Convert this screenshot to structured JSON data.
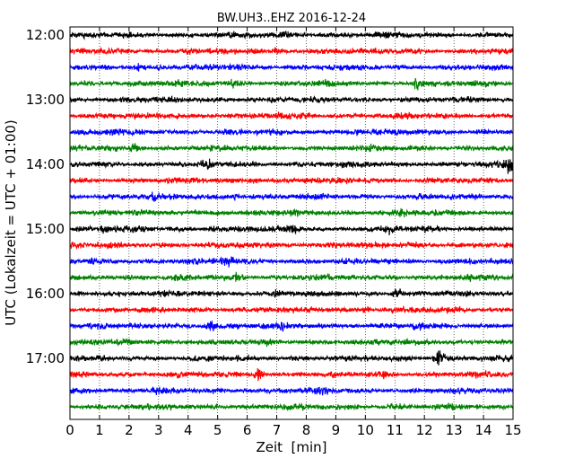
{
  "chart_data": {
    "type": "line",
    "title": "BW.UH3..EHZ 2016-12-24",
    "xlabel": "Zeit  [min]",
    "ylabel": "UTC (Lokalzeit = UTC + 01:00)",
    "xlim": [
      0,
      15
    ],
    "x_ticks": [
      "0",
      "1",
      "2",
      "3",
      "4",
      "5",
      "6",
      "7",
      "8",
      "9",
      "10",
      "11",
      "12",
      "13",
      "14",
      "15"
    ],
    "y_tick_labels": [
      "12:00",
      "13:00",
      "14:00",
      "15:00",
      "16:00",
      "17:00"
    ],
    "row_interval_minutes": 15,
    "grid": "dotted vertical lines at each minute",
    "colors": [
      "#000000",
      "#ff0000",
      "#0000ff",
      "#008000"
    ],
    "series": [
      {
        "start": "12:00",
        "events": [
          {
            "t": 7.3,
            "amp": 1.2
          }
        ]
      },
      {
        "start": "12:15",
        "events": [
          {
            "t": 4.0,
            "amp": 1.1
          },
          {
            "t": 7.0,
            "amp": 1.1
          }
        ]
      },
      {
        "start": "12:30",
        "events": [
          {
            "t": 2.3,
            "amp": 1.1
          },
          {
            "t": 5.7,
            "amp": 1.0
          }
        ]
      },
      {
        "start": "12:45",
        "events": [
          {
            "t": 5.5,
            "amp": 1.2
          },
          {
            "t": 8.6,
            "amp": 1.2
          },
          {
            "t": 11.8,
            "amp": 2.2
          }
        ]
      },
      {
        "start": "13:00",
        "events": []
      },
      {
        "start": "13:15",
        "events": [
          {
            "t": 3.7,
            "amp": 1.2
          },
          {
            "t": 7.2,
            "amp": 1.0
          },
          {
            "t": 11.5,
            "amp": 1.2
          }
        ]
      },
      {
        "start": "13:30",
        "events": [
          {
            "t": 1.5,
            "amp": 1.0
          },
          {
            "t": 9.7,
            "amp": 1.1
          }
        ]
      },
      {
        "start": "13:45",
        "events": [
          {
            "t": 2.2,
            "amp": 1.5
          },
          {
            "t": 10.0,
            "amp": 1.2
          }
        ]
      },
      {
        "start": "14:00",
        "events": [
          {
            "t": 4.7,
            "amp": 1.5
          },
          {
            "t": 14.9,
            "amp": 2.8
          }
        ]
      },
      {
        "start": "14:15",
        "events": [
          {
            "t": 6.2,
            "amp": 1.1
          }
        ]
      },
      {
        "start": "14:30",
        "events": [
          {
            "t": 2.8,
            "amp": 1.3
          },
          {
            "t": 5.6,
            "amp": 1.2
          }
        ]
      },
      {
        "start": "14:45",
        "events": [
          {
            "t": 5.1,
            "amp": 1.3
          },
          {
            "t": 11.2,
            "amp": 1.2
          }
        ]
      },
      {
        "start": "15:00",
        "events": [
          {
            "t": 1.2,
            "amp": 1.2
          },
          {
            "t": 4.8,
            "amp": 1.1
          },
          {
            "t": 7.6,
            "amp": 1.2
          },
          {
            "t": 10.8,
            "amp": 1.2
          }
        ]
      },
      {
        "start": "15:15",
        "events": [
          {
            "t": 9.0,
            "amp": 1.1
          }
        ]
      },
      {
        "start": "15:30",
        "events": [
          {
            "t": 5.3,
            "amp": 1.8
          },
          {
            "t": 13.6,
            "amp": 1.1
          }
        ]
      },
      {
        "start": "15:45",
        "events": [
          {
            "t": 5.6,
            "amp": 1.3
          },
          {
            "t": 8.2,
            "amp": 1.2
          },
          {
            "t": 13.5,
            "amp": 1.1
          }
        ]
      },
      {
        "start": "16:00",
        "events": [
          {
            "t": 7.0,
            "amp": 1.3
          },
          {
            "t": 11.1,
            "amp": 1.6
          }
        ]
      },
      {
        "start": "16:15",
        "events": [
          {
            "t": 10.0,
            "amp": 1.2
          }
        ]
      },
      {
        "start": "16:30",
        "events": [
          {
            "t": 1.1,
            "amp": 1.2
          },
          {
            "t": 4.8,
            "amp": 2.0
          },
          {
            "t": 7.2,
            "amp": 1.1
          },
          {
            "t": 11.8,
            "amp": 1.2
          }
        ]
      },
      {
        "start": "16:45",
        "events": [
          {
            "t": 2.0,
            "amp": 1.1
          },
          {
            "t": 6.8,
            "amp": 1.1
          }
        ]
      },
      {
        "start": "17:00",
        "events": [
          {
            "t": 12.5,
            "amp": 2.2
          }
        ]
      },
      {
        "start": "17:15",
        "events": [
          {
            "t": 6.4,
            "amp": 2.0
          },
          {
            "t": 10.6,
            "amp": 1.1
          }
        ]
      },
      {
        "start": "17:30",
        "events": [
          {
            "t": 0.5,
            "amp": 1.3
          },
          {
            "t": 2.9,
            "amp": 1.1
          },
          {
            "t": 8.6,
            "amp": 1.2
          }
        ]
      },
      {
        "start": "17:45",
        "events": [
          {
            "t": 4.9,
            "amp": 1.0
          },
          {
            "t": 10.9,
            "amp": 1.0
          }
        ]
      }
    ]
  }
}
